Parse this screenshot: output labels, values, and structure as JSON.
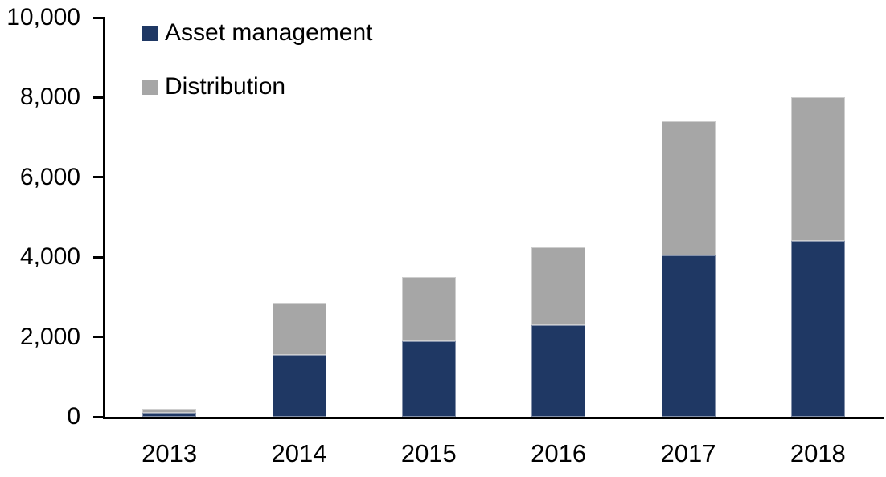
{
  "chart_data": {
    "type": "bar",
    "stacked": true,
    "title": "",
    "xlabel": "",
    "ylabel": "",
    "categories": [
      "2013",
      "2014",
      "2015",
      "2016",
      "2017",
      "2018"
    ],
    "series": [
      {
        "name": "Asset management",
        "color": "#1F3864",
        "values": [
          100,
          1550,
          1900,
          2300,
          4050,
          4400
        ]
      },
      {
        "name": "Distribution",
        "color": "#A6A6A6",
        "values": [
          100,
          1300,
          1600,
          1950,
          3350,
          3600
        ]
      }
    ],
    "totals": [
      200,
      2850,
      3500,
      4250,
      7400,
      8000
    ],
    "ylim": [
      0,
      10000
    ],
    "ytick_step": 2000,
    "ytick_labels": [
      "0",
      "2,000",
      "4,000",
      "6,000",
      "8,000",
      "10,000"
    ],
    "grid": false,
    "legend_position": "top-left-inside",
    "axis_color": "#000000",
    "background_color": "#FFFFFF"
  }
}
